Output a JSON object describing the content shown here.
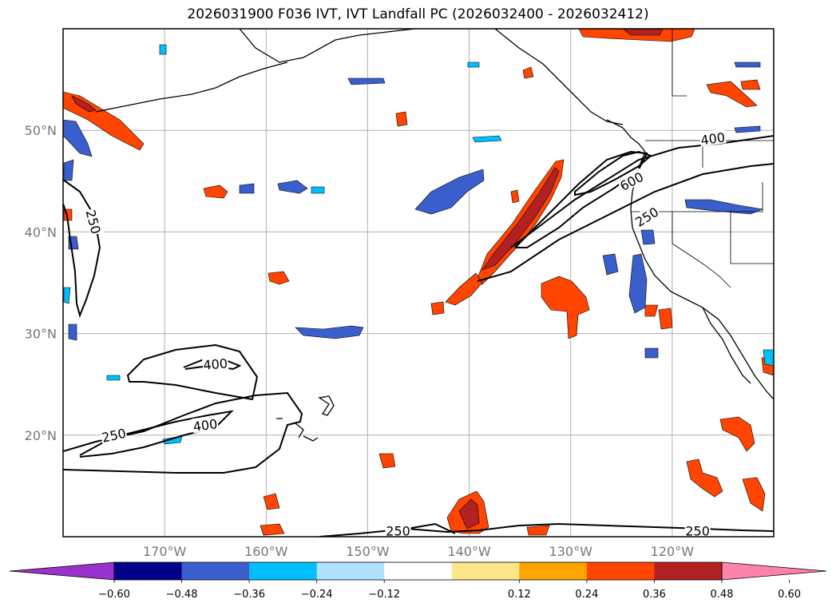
{
  "title": "2026031900 F036 IVT, IVT Landfall PC (2026032400 - 2026032412)",
  "map": {
    "lon_range": [
      -180,
      -110
    ],
    "lat_range": [
      10,
      60
    ],
    "lon_ticks": [
      {
        "value": -170,
        "label": "170°W"
      },
      {
        "value": -160,
        "label": "160°W"
      },
      {
        "value": -150,
        "label": "150°W"
      },
      {
        "value": -140,
        "label": "140°W"
      },
      {
        "value": -130,
        "label": "130°W"
      },
      {
        "value": -120,
        "label": "120°W"
      }
    ],
    "lat_ticks": [
      {
        "value": 50,
        "label": "50°N"
      },
      {
        "value": 40,
        "label": "40°N"
      },
      {
        "value": 30,
        "label": "30°N"
      },
      {
        "value": 20,
        "label": "20°N"
      }
    ],
    "contour_labels": [
      {
        "text": "250",
        "lon": -177,
        "lat": 41.0,
        "rot": 75
      },
      {
        "text": "400",
        "lon": -165,
        "lat": 27.0,
        "rot": -5
      },
      {
        "text": "400",
        "lon": -166,
        "lat": 21.0,
        "rot": -8
      },
      {
        "text": "250",
        "lon": -175,
        "lat": 20.0,
        "rot": -12
      },
      {
        "text": "600",
        "lon": -124,
        "lat": 45.0,
        "rot": -28
      },
      {
        "text": "400",
        "lon": -116,
        "lat": 49.2,
        "rot": -8
      },
      {
        "text": "250",
        "lon": -122.5,
        "lat": 41.5,
        "rot": -32
      },
      {
        "text": "250",
        "lon": -147,
        "lat": 10.6,
        "rot": 0
      },
      {
        "text": "250",
        "lon": -117.5,
        "lat": 10.6,
        "rot": 0
      }
    ]
  },
  "colorbar": {
    "colors": [
      "#9932cc",
      "#00008b",
      "#3a5fcd",
      "#00bfff",
      "#b0e2ff",
      "#ffffff",
      "#fde68a",
      "#ffa500",
      "#ff4500",
      "#b22222",
      "#ff82ab"
    ],
    "ticks": [
      "−0.60",
      "−0.48",
      "−0.36",
      "−0.24",
      "−0.12",
      "0.12",
      "0.24",
      "0.36",
      "0.48",
      "0.60"
    ]
  }
}
